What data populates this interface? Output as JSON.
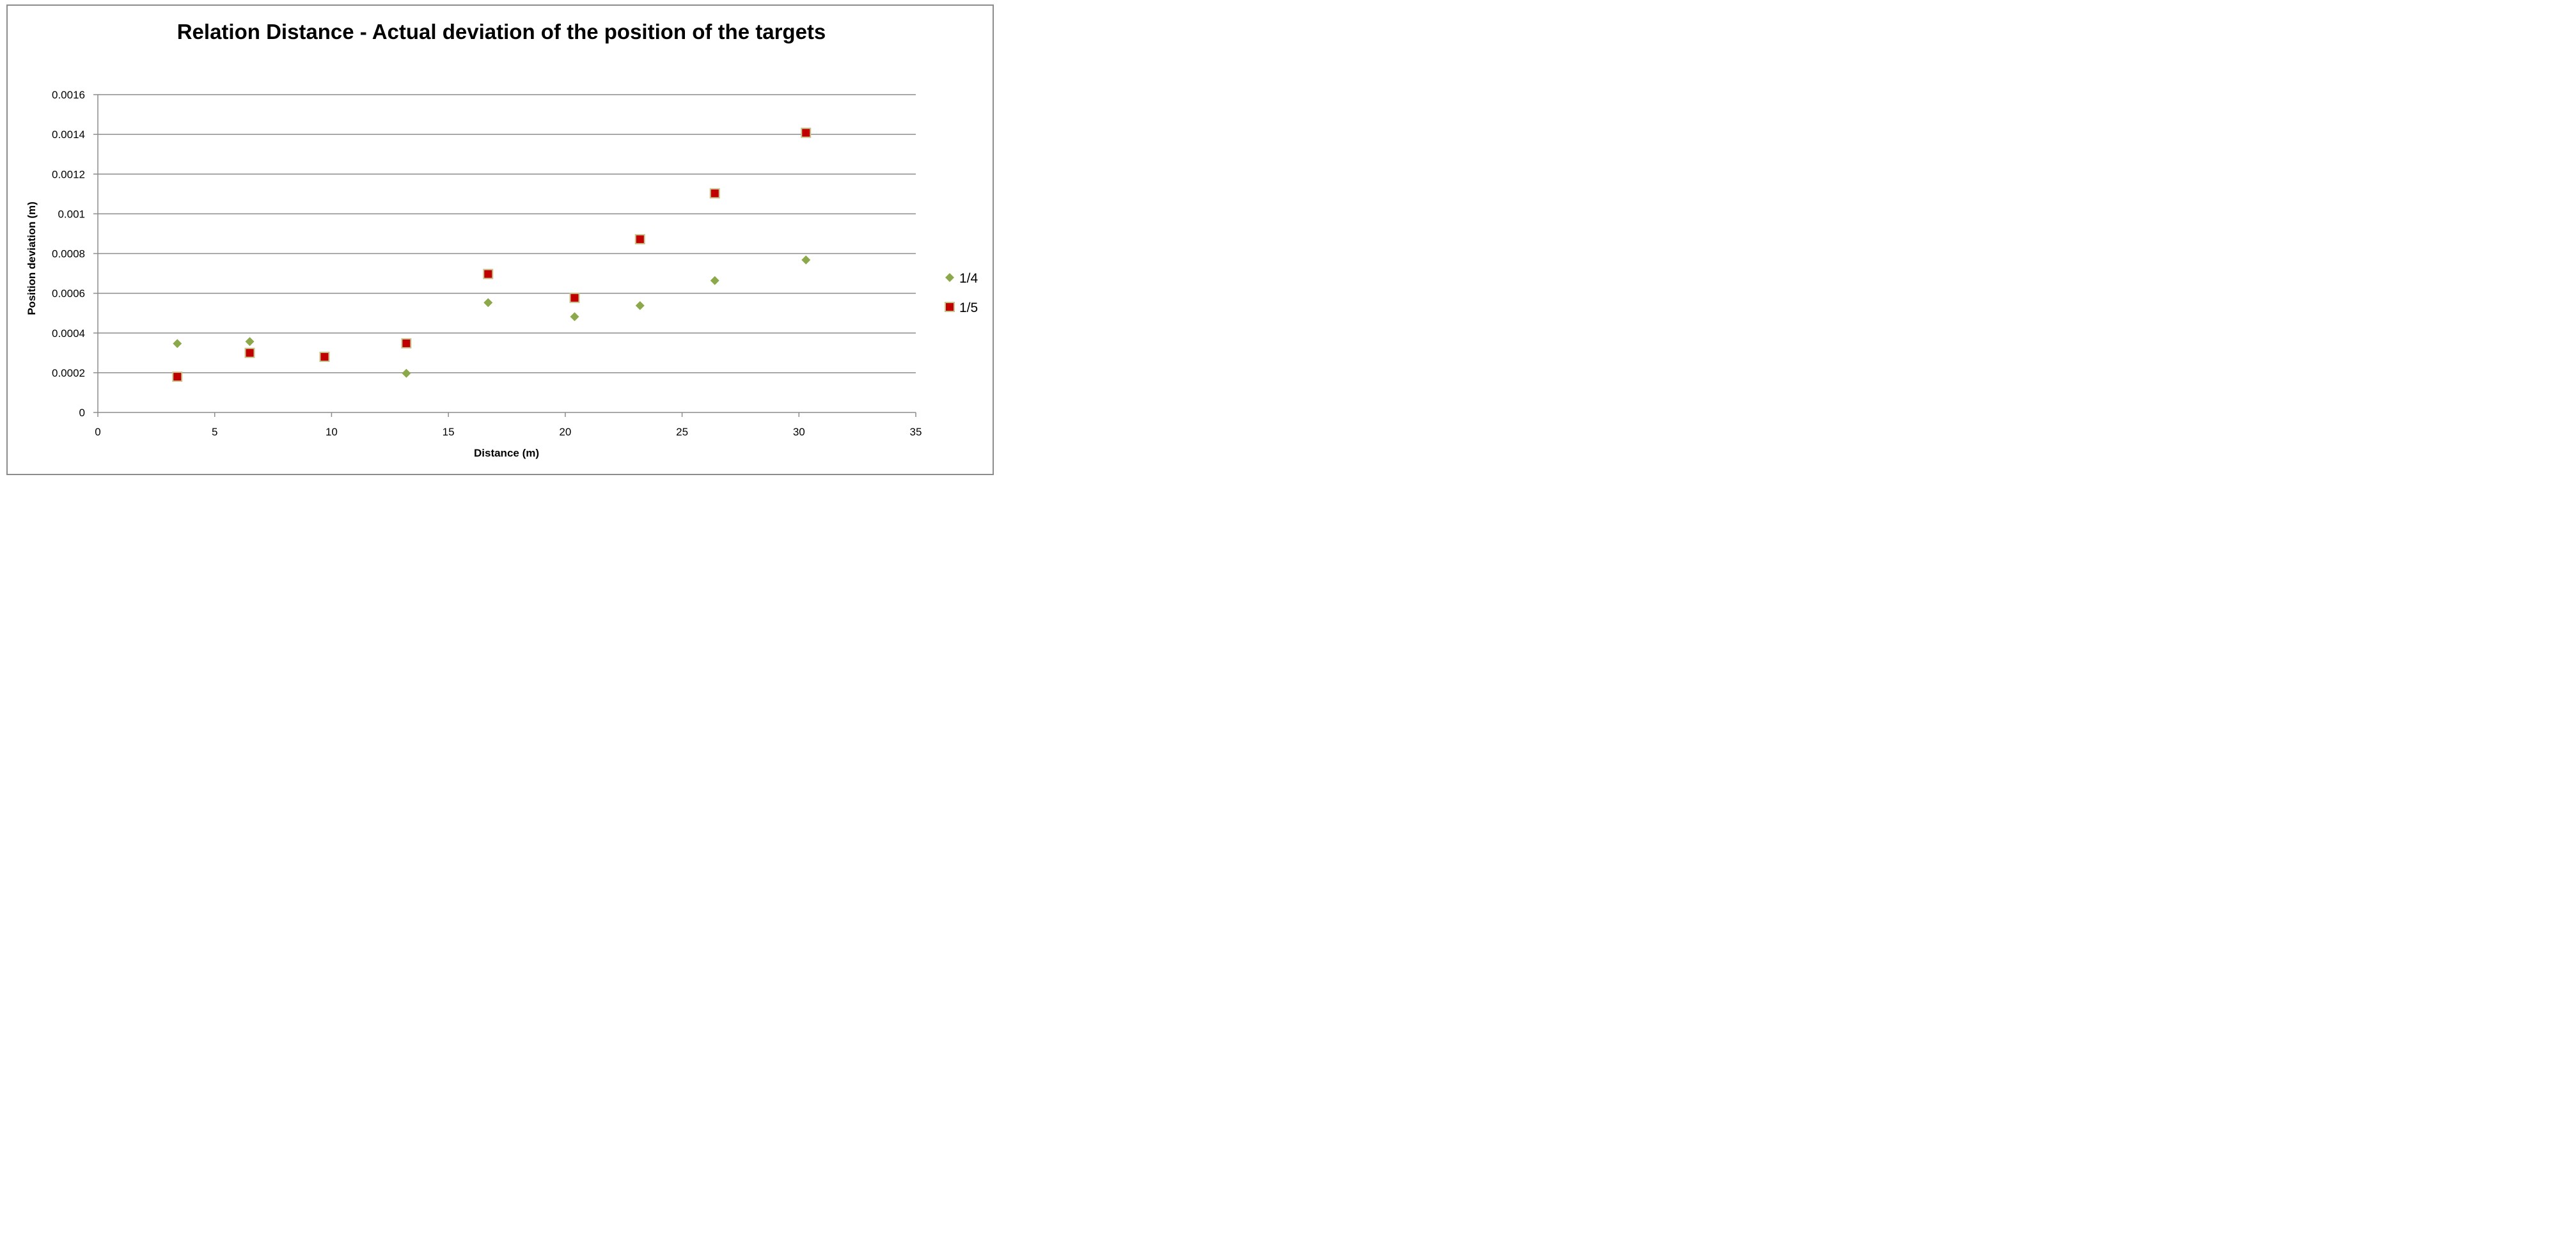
{
  "chart_data": {
    "type": "scatter",
    "title": "Relation Distance - Actual deviation of the position of the targets",
    "xlabel": "Distance (m)",
    "ylabel": "Position deviation (m)",
    "xlim": [
      0,
      35
    ],
    "ylim": [
      0,
      0.0016
    ],
    "x_ticks": [
      0,
      5,
      10,
      15,
      20,
      25,
      30,
      35
    ],
    "x_tick_labels": [
      "0",
      "5",
      "10",
      "15",
      "20",
      "25",
      "30",
      "35"
    ],
    "y_ticks": [
      0,
      0.0002,
      0.0004,
      0.0006,
      0.0008,
      0.001,
      0.0012,
      0.0014,
      0.0016
    ],
    "y_tick_labels": [
      "0",
      "0.0002",
      "0.0004",
      "0.0006",
      "0.0008",
      "0.001",
      "0.0012",
      "0.0014",
      "0.0016"
    ],
    "grid": "horizontal",
    "legend_position": "right",
    "series": [
      {
        "name": "1/4",
        "marker": "diamond",
        "color": "#8BA94A",
        "points": [
          {
            "x": 3.4,
            "y": 0.000347
          },
          {
            "x": 6.5,
            "y": 0.000357
          },
          {
            "x": 13.2,
            "y": 0.000197
          },
          {
            "x": 16.7,
            "y": 0.000553
          },
          {
            "x": 20.4,
            "y": 0.000482
          },
          {
            "x": 23.2,
            "y": 0.000538
          },
          {
            "x": 26.4,
            "y": 0.000664
          },
          {
            "x": 30.3,
            "y": 0.000768
          }
        ]
      },
      {
        "name": "1/5",
        "marker": "square",
        "color": "#C00000",
        "border_color": "#C7C48E",
        "points": [
          {
            "x": 3.4,
            "y": 0.00018
          },
          {
            "x": 6.5,
            "y": 0.0003
          },
          {
            "x": 9.7,
            "y": 0.00028
          },
          {
            "x": 13.2,
            "y": 0.000348
          },
          {
            "x": 16.7,
            "y": 0.000697
          },
          {
            "x": 20.4,
            "y": 0.000577
          },
          {
            "x": 23.2,
            "y": 0.000872
          },
          {
            "x": 26.4,
            "y": 0.001103
          },
          {
            "x": 30.3,
            "y": 0.001408
          }
        ]
      }
    ]
  }
}
